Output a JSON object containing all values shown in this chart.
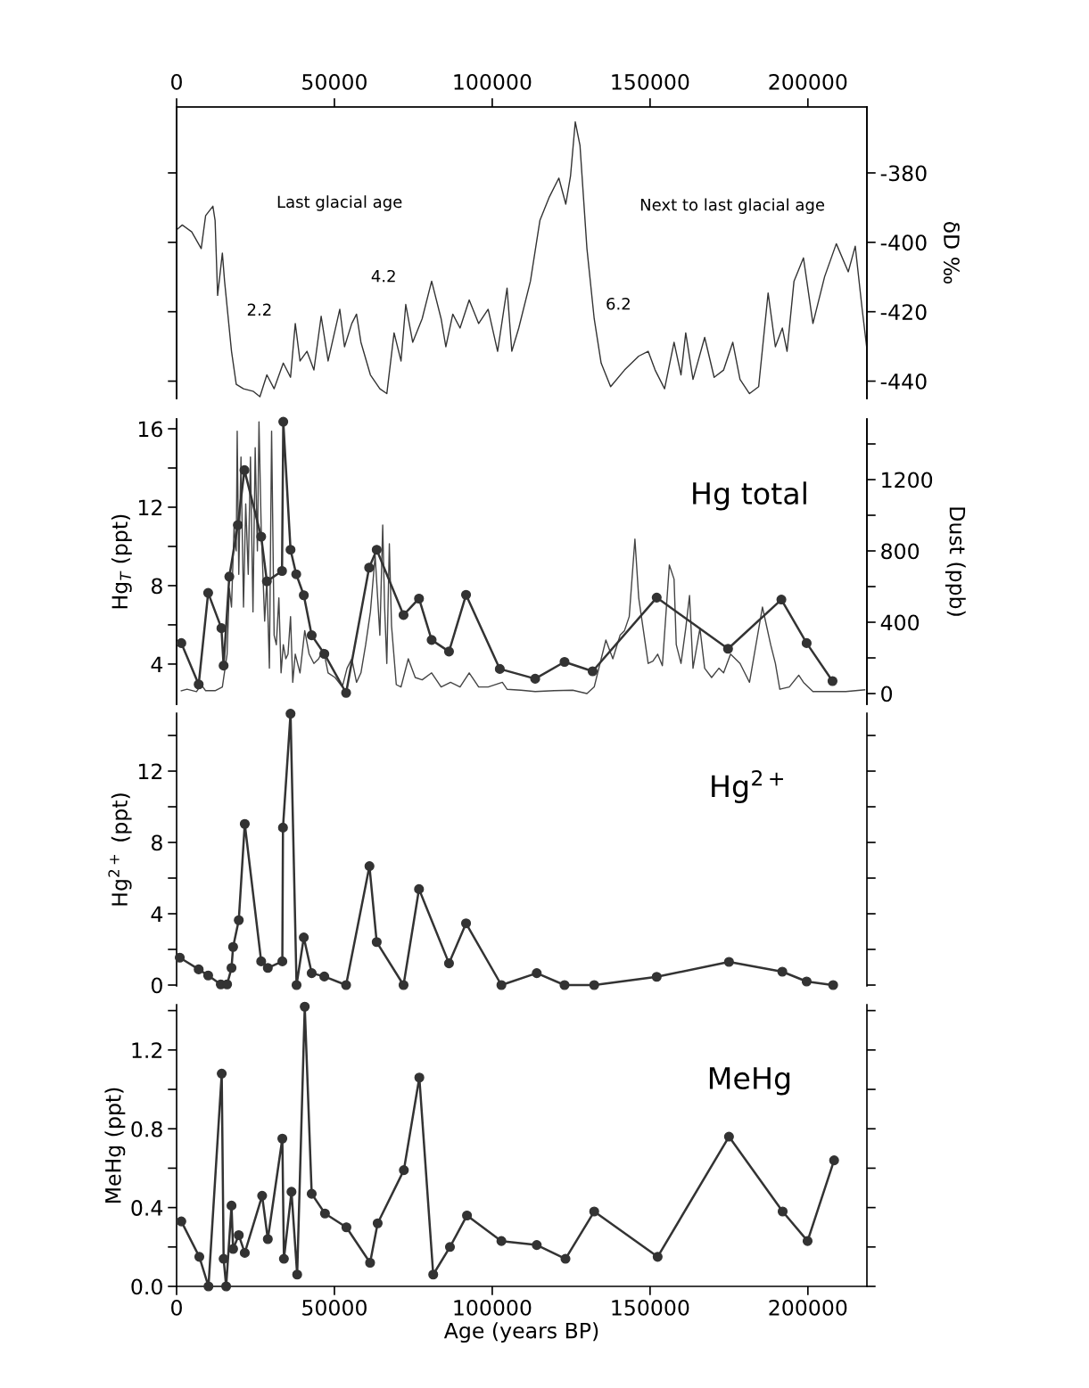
{
  "chart_data": [
    {
      "type": "line",
      "y2label": "δD ‰",
      "x2lim": [
        0,
        218700
      ],
      "x2ticks": [
        0,
        50000,
        100000,
        150000,
        200000
      ],
      "xlim": [
        0,
        218700
      ],
      "y2lim": [
        -445,
        -361
      ],
      "y2ticks": [
        -380,
        -400,
        -420,
        -440
      ],
      "grid": false,
      "legend": false,
      "annotations": [
        "Last glacial age",
        "Next to last glacial age",
        "2.2",
        "4.2",
        "6.2"
      ],
      "series": [
        {
          "axis": "y2",
          "color": "#333333",
          "marker": "none",
          "x": [
            0,
            1800,
            4800,
            7800,
            9200,
            11500,
            12200,
            13000,
            14500,
            15200,
            17400,
            18900,
            21200,
            24200,
            26400,
            28600,
            30900,
            33800,
            36100,
            37600,
            39100,
            41300,
            43500,
            45800,
            48000,
            51700,
            53200,
            55500,
            57000,
            58400,
            61400,
            64400,
            66600,
            68900,
            71100,
            72600,
            74800,
            77800,
            80800,
            83800,
            85300,
            87500,
            89800,
            92700,
            95700,
            98700,
            101700,
            104700,
            106200,
            108400,
            112100,
            115100,
            118100,
            121100,
            123300,
            124800,
            126300,
            127800,
            130000,
            132300,
            134500,
            137500,
            141900,
            146400,
            149400,
            151600,
            154600,
            157600,
            159800,
            161300,
            163600,
            167300,
            170300,
            173300,
            176200,
            178500,
            181500,
            184400,
            187400,
            189700,
            191900,
            193400,
            195600,
            198600,
            201600,
            205300,
            209000,
            212800,
            215000,
            217200,
            218600
          ],
          "values": [
            -396.4,
            -395.0,
            -397.0,
            -401.8,
            -392.3,
            -389.6,
            -393.7,
            -415.3,
            -403.1,
            -411.2,
            -431.4,
            -440.9,
            -442.2,
            -442.9,
            -444.5,
            -438.2,
            -442.2,
            -434.8,
            -438.9,
            -423.4,
            -434.2,
            -431.4,
            -436.8,
            -421.3,
            -434.2,
            -419.3,
            -430.1,
            -423.4,
            -420.7,
            -428.8,
            -438.2,
            -442.2,
            -443.6,
            -426.1,
            -434.2,
            -417.9,
            -428.8,
            -422.0,
            -411.2,
            -422.0,
            -430.1,
            -420.7,
            -424.7,
            -416.6,
            -423.4,
            -419.3,
            -431.4,
            -413.2,
            -431.4,
            -424.7,
            -411.2,
            -393.7,
            -386.9,
            -381.5,
            -389.0,
            -380.9,
            -365.3,
            -372.1,
            -401.8,
            -422.0,
            -434.8,
            -441.6,
            -436.8,
            -432.8,
            -431.4,
            -436.8,
            -442.2,
            -428.8,
            -438.2,
            -426.1,
            -439.5,
            -427.4,
            -438.9,
            -436.8,
            -428.8,
            -439.5,
            -443.6,
            -441.6,
            -414.6,
            -430.1,
            -424.7,
            -431.4,
            -411.2,
            -404.5,
            -423.4,
            -409.9,
            -400.4,
            -408.5,
            -401.1,
            -419.3,
            -430.0
          ]
        }
      ]
    },
    {
      "type": "line",
      "tick_labels": "y",
      "title": "Hg total",
      "ylabel": "Hg$_{T}$ (ppt)",
      "y2label": "Dust (ppb)",
      "xlim": [
        0,
        218700
      ],
      "ylim": [
        1.95,
        16.5
      ],
      "yticks": [
        4,
        {
          "value": 6,
          "label": null
        },
        8,
        {
          "value": 10,
          "label": null
        },
        12,
        {
          "value": 14,
          "label": null
        },
        16
      ],
      "y2lim": [
        -60,
        1540
      ],
      "y2ticks": [
        0,
        {
          "value": 200,
          "label": null
        },
        400,
        {
          "value": 600,
          "label": null
        },
        800,
        {
          "value": 1000,
          "label": null
        },
        1200,
        {
          "value": 1400,
          "label": null
        }
      ],
      "grid": false,
      "legend": false,
      "series": [
        {
          "color": "#333333",
          "marker": "circle",
          "x": [
            1500,
            7000,
            10000,
            14200,
            14900,
            16700,
            19400,
            21500,
            26800,
            28600,
            33400,
            33800,
            36100,
            37900,
            40300,
            42800,
            46800,
            53700,
            61000,
            63400,
            71900,
            76800,
            80800,
            86300,
            91700,
            102400,
            113600,
            122900,
            131800,
            152100,
            174700,
            191600,
            199600,
            207800
          ],
          "values": [
            5.07,
            2.96,
            7.63,
            5.83,
            3.92,
            8.46,
            11.09,
            13.89,
            10.5,
            8.22,
            8.75,
            16.36,
            9.83,
            8.58,
            7.51,
            5.47,
            4.52,
            2.53,
            8.92,
            9.83,
            6.5,
            7.34,
            5.23,
            4.64,
            7.53,
            3.75,
            3.25,
            4.11,
            3.63,
            7.39,
            4.78,
            7.29,
            5.07,
            3.13
          ]
        },
        {
          "axis": "y2",
          "color": "#444444",
          "marker": "none",
          "x": [
            1500,
            3300,
            6300,
            7800,
            9200,
            12200,
            14500,
            16000,
            16700,
            17400,
            18200,
            18900,
            19200,
            19700,
            20400,
            21200,
            21900,
            22700,
            23400,
            24200,
            24900,
            25600,
            26100,
            26800,
            27900,
            28600,
            29400,
            30100,
            30900,
            31600,
            32400,
            33100,
            33800,
            34600,
            35300,
            36100,
            36800,
            37600,
            39100,
            40600,
            42000,
            43500,
            45000,
            46500,
            48000,
            50200,
            52500,
            54000,
            55500,
            57000,
            58400,
            59900,
            61400,
            62900,
            64400,
            65300,
            65900,
            66600,
            67400,
            68100,
            69600,
            71100,
            73400,
            75600,
            77800,
            80800,
            83800,
            86800,
            89800,
            92700,
            95700,
            98700,
            103200,
            104700,
            109100,
            113600,
            119600,
            125500,
            130000,
            132300,
            136000,
            138200,
            140500,
            141900,
            143400,
            145200,
            146400,
            149400,
            150900,
            152400,
            153900,
            156100,
            157600,
            158300,
            159800,
            161300,
            162500,
            163600,
            165800,
            167300,
            169500,
            171800,
            173300,
            175500,
            178500,
            181500,
            185600,
            188200,
            189700,
            191100,
            194100,
            197100,
            198600,
            201600,
            206100,
            212000,
            218000
          ],
          "values": [
            16,
            24,
            11,
            50,
            16,
            16,
            37,
            221,
            590,
            485,
            932,
            800,
            1472,
            669,
            1327,
            485,
            1064,
            669,
            1327,
            458,
            1379,
            800,
            1524,
            932,
            406,
            642,
            142,
            1472,
            327,
            274,
            537,
            116,
            274,
            195,
            221,
            432,
            63,
            221,
            116,
            353,
            221,
            169,
            195,
            248,
            116,
            90,
            37,
            142,
            195,
            63,
            116,
            274,
            458,
            774,
            327,
            945,
            485,
            169,
            840,
            379,
            50,
            37,
            195,
            90,
            77,
            116,
            37,
            63,
            37,
            116,
            37,
            37,
            63,
            24,
            19,
            11,
            16,
            19,
            0,
            37,
            300,
            195,
            327,
            353,
            432,
            866,
            537,
            169,
            182,
            221,
            156,
            721,
            642,
            274,
            169,
            366,
            550,
            142,
            366,
            142,
            90,
            142,
            116,
            221,
            169,
            63,
            485,
            274,
            169,
            24,
            37,
            103,
            63,
            11,
            11,
            11,
            21
          ]
        }
      ]
    },
    {
      "type": "line",
      "tick_labels": "y",
      "title": "Hg$^{2+}$",
      "ylabel": "Hg$^{2+}$ (ppt)",
      "xlim": [
        0,
        218700
      ],
      "ylim": [
        -0.05,
        15.25
      ],
      "yticks": [
        0,
        {
          "value": 2,
          "label": null
        },
        4,
        {
          "value": 6,
          "label": null
        },
        8,
        {
          "value": 10,
          "label": null
        },
        12,
        {
          "value": 14,
          "label": null
        }
      ],
      "grid": false,
      "legend": false,
      "series": [
        {
          "color": "#333333",
          "marker": "circle",
          "x": [
            1000,
            7000,
            10000,
            14000,
            16000,
            17400,
            17900,
            19700,
            21600,
            26800,
            28900,
            33500,
            33700,
            36100,
            38000,
            40300,
            42800,
            46800,
            53700,
            61100,
            63400,
            71900,
            76800,
            86300,
            91700,
            102900,
            114100,
            122900,
            132300,
            152100,
            175000,
            191900,
            199600,
            208000
          ],
          "values": [
            1.54,
            0.88,
            0.54,
            0.04,
            0.04,
            0.96,
            2.14,
            3.64,
            9.04,
            1.33,
            0.96,
            1.33,
            8.83,
            15.22,
            0,
            2.67,
            0.67,
            0.48,
            0,
            6.67,
            2.41,
            0,
            5.38,
            1.22,
            3.46,
            0,
            0.67,
            0,
            0,
            0.46,
            1.3,
            0.75,
            0.2,
            0
          ]
        }
      ]
    },
    {
      "type": "line",
      "xlabel": "Age (years BP)",
      "title": "MeHg",
      "ylabel": "MeHg (ppt)",
      "xlim": [
        0,
        218700
      ],
      "xticks": [
        0,
        50000,
        100000,
        150000,
        200000
      ],
      "ylim": [
        0,
        1.43
      ],
      "yticks": [
        {
          "value": 0,
          "label": "0.0"
        },
        {
          "value": 0.2,
          "label": null
        },
        0.4,
        {
          "value": 0.6,
          "label": null
        },
        0.8,
        {
          "value": 1.0,
          "label": null
        },
        1.2,
        {
          "value": 1.4,
          "label": null
        }
      ],
      "grid": false,
      "legend": false,
      "series": [
        {
          "color": "#333333",
          "marker": "circle",
          "x": [
            1500,
            7200,
            10100,
            14300,
            14900,
            15700,
            17400,
            17900,
            19700,
            21600,
            27100,
            28900,
            33500,
            34000,
            36400,
            38200,
            40600,
            42800,
            47000,
            53800,
            61300,
            63700,
            72000,
            76900,
            81300,
            86600,
            92000,
            102900,
            114100,
            123200,
            132300,
            152400,
            175000,
            192000,
            199900,
            208300
          ],
          "values": [
            0.33,
            0.15,
            0,
            1.08,
            0.14,
            0,
            0.41,
            0.19,
            0.26,
            0.17,
            0.46,
            0.24,
            0.75,
            0.14,
            0.48,
            0.06,
            1.42,
            0.47,
            0.37,
            0.3,
            0.12,
            0.32,
            0.59,
            1.06,
            0.06,
            0.2,
            0.36,
            0.23,
            0.21,
            0.14,
            0.38,
            0.15,
            0.76,
            0.38,
            0.23,
            0.64
          ]
        }
      ]
    }
  ]
}
